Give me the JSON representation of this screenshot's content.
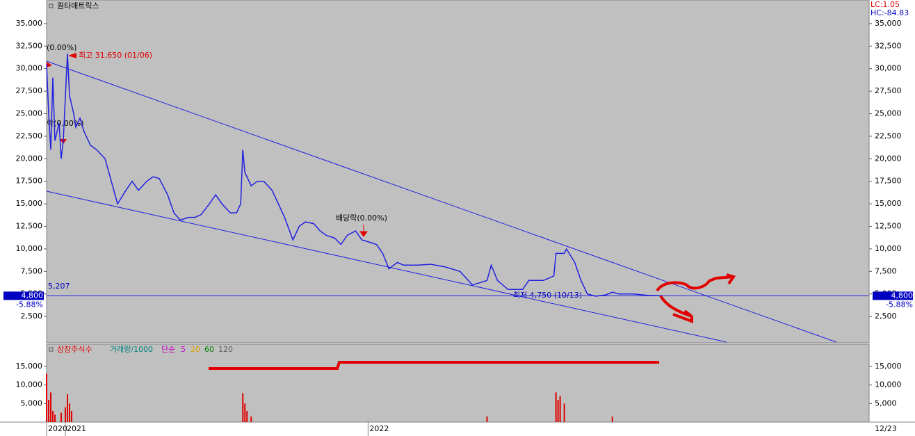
{
  "chart_data": [
    {
      "type": "line",
      "title": "퀀타매트릭스",
      "corner_labels": [
        "LC:1.05",
        "HC:-84.83"
      ],
      "x": [
        0,
        1,
        2,
        3,
        4,
        6,
        7,
        8,
        10,
        11,
        13,
        14,
        16,
        18,
        21,
        24,
        28,
        31,
        34,
        38,
        41,
        44,
        48,
        51,
        54,
        58,
        61,
        64,
        68,
        71,
        74,
        78,
        81,
        84,
        88,
        91,
        93,
        94,
        95,
        98,
        101,
        104,
        108,
        111,
        114,
        118,
        121,
        124,
        128,
        131,
        134,
        138,
        141,
        144,
        148,
        151,
        154,
        158,
        161,
        164,
        168,
        171,
        178,
        184,
        191,
        198,
        204,
        211,
        213,
        216,
        221,
        228,
        231,
        238,
        243,
        244,
        248,
        249,
        253,
        256,
        259,
        263,
        268,
        271,
        274,
        281,
        288,
        294
      ],
      "series": [
        {
          "name": "price",
          "color": "#2020e0",
          "values": [
            30500,
            25000,
            21000,
            29000,
            22000,
            24000,
            20000,
            22000,
            31650,
            27000,
            25000,
            23500,
            24500,
            23000,
            21500,
            21000,
            20000,
            17500,
            15000,
            16500,
            17500,
            16500,
            17500,
            18000,
            17800,
            16000,
            14000,
            13200,
            13500,
            13500,
            13800,
            15000,
            16000,
            15000,
            14000,
            14000,
            15000,
            21000,
            18500,
            17000,
            17500,
            17500,
            16500,
            15000,
            13500,
            11000,
            12500,
            13000,
            12800,
            12000,
            11500,
            11200,
            10500,
            11500,
            12000,
            11000,
            10800,
            10500,
            9500,
            7800,
            8500,
            8200,
            8200,
            8300,
            8000,
            7500,
            6000,
            6500,
            8200,
            6500,
            5500,
            5500,
            6500,
            6500,
            7000,
            9500,
            9500,
            10000,
            8500,
            6500,
            5000,
            4750,
            4900,
            5200,
            5000,
            5000,
            4850,
            4800
          ]
        }
      ],
      "xlim": [
        0,
        394
      ],
      "xticks": [
        {
          "value": 0,
          "label": "2020"
        },
        {
          "value": 9,
          "label": "2021"
        },
        {
          "value": 154,
          "label": "2022"
        }
      ],
      "end_label": "12/23",
      "ylim": [
        -420,
        37460
      ],
      "yticks": [
        {
          "value": 2500,
          "label": "2,500"
        },
        {
          "value": 5000,
          "label": "5,000"
        },
        {
          "value": 7500,
          "label": "7,500"
        },
        {
          "value": 10000,
          "label": "10,000"
        },
        {
          "value": 12500,
          "label": "12,500"
        },
        {
          "value": 15000,
          "label": "15,000"
        },
        {
          "value": 17500,
          "label": "17,500"
        },
        {
          "value": 20000,
          "label": "20,000"
        },
        {
          "value": 22500,
          "label": "22,500"
        },
        {
          "value": 25000,
          "label": "25,000"
        },
        {
          "value": 27500,
          "label": "27,500"
        },
        {
          "value": 30000,
          "label": "30,000"
        },
        {
          "value": 32500,
          "label": "32,500"
        },
        {
          "value": 35000,
          "label": "35,000"
        }
      ],
      "price_line": {
        "value": 4800,
        "label": "4,800",
        "change": "-5.88%"
      },
      "annotations": [
        "최고 31,650 (01/06)",
        "최저 4,750 (10/13)",
        "배당락(0.00%)",
        "락(0.00%)",
        "(0.00%)",
        "5,207"
      ]
    },
    {
      "type": "bar",
      "legend": [
        "상장주식수",
        "거래량/1000",
        "단순",
        "5",
        "20",
        "60",
        "120"
      ],
      "x": [
        0,
        1,
        2,
        3,
        4,
        7,
        9,
        10,
        11,
        12,
        94,
        95,
        96,
        98,
        211,
        244,
        245,
        246,
        248,
        271
      ],
      "values": [
        13000,
        6000,
        8000,
        3000,
        2000,
        2500,
        4000,
        7500,
        5000,
        3000,
        7800,
        5000,
        3000,
        1500,
        1500,
        8000,
        6000,
        7000,
        5000,
        1500
      ],
      "color": "#e00000",
      "ylim": [
        0,
        21000
      ],
      "yticks": [
        {
          "value": 5000,
          "label": "5,000"
        },
        {
          "value": 10000,
          "label": "10,000"
        },
        {
          "value": 15000,
          "label": "15,000"
        }
      ]
    }
  ]
}
